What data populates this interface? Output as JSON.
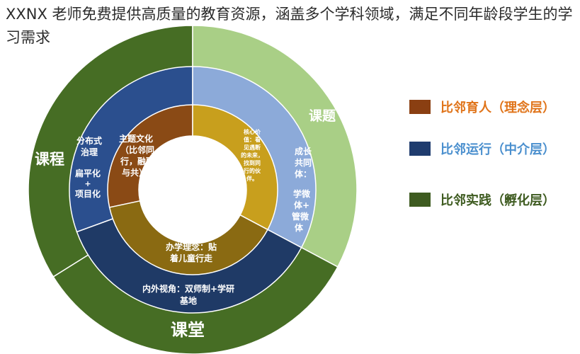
{
  "caption": {
    "text": "XXNX 老师免费提供高质量的教育资源，涵盖多个学科领域，满足不同年龄段学生的学习需求"
  },
  "outer_ring": {
    "course": "课程",
    "class": "课堂",
    "topic": "课题"
  },
  "middle_ring": {
    "course_lines": [
      "分布式",
      "治理",
      "扁平化",
      "+",
      "项目化"
    ],
    "topic_lines": [
      "成长",
      "共同",
      "体：",
      "学微",
      "体+",
      "管微",
      "体"
    ],
    "class_lines": [
      "内外视角：双师制+学研",
      "基地"
    ]
  },
  "inner_ring": {
    "theme_lines": [
      "主题文化",
      "（比邻同",
      "行，融融",
      "与共）"
    ],
    "values_lines": [
      "核心价",
      "值：看",
      "见遇断",
      "的未来，",
      "找到同",
      "行的伙",
      "伴。"
    ],
    "philosophy_lines": [
      "办学理念：贴",
      "着儿童行走"
    ]
  },
  "legend": [
    {
      "label": "比邻育人（理念层）",
      "swatch": "#8a3f12",
      "text_color": "#e0741a"
    },
    {
      "label": "比邻运行（中介层）",
      "swatch": "#1f3c6e",
      "text_color": "#4a8fce"
    },
    {
      "label": "比邻实践（孵化层）",
      "swatch": "#3e5b20",
      "text_color": "#3e5b20"
    }
  ],
  "colors": {
    "outer_green": "#466d24",
    "outer_green_light": "#a9cf86",
    "middle_blue": "#2b4f8e",
    "middle_navy": "#1f3a66",
    "middle_light_blue": "#8caad9",
    "inner_brown": "#8a4a15",
    "inner_gold": "#c89f1d",
    "inner_olive": "#8a6a12"
  }
}
